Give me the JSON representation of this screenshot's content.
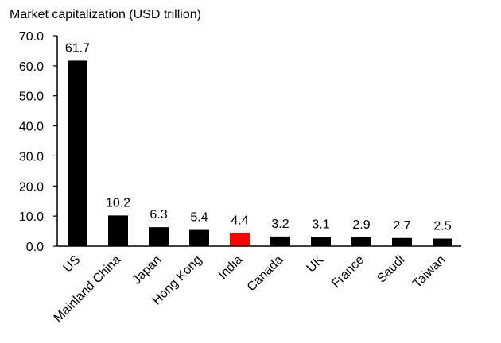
{
  "chart_data": {
    "type": "bar",
    "title": "Market capitalization (USD trillion)",
    "xlabel": "",
    "ylabel": "",
    "categories": [
      "US",
      "Mainland China",
      "Japan",
      "Hong Kong",
      "India",
      "Canada",
      "UK",
      "France",
      "Saudi",
      "Taiwan"
    ],
    "values": [
      61.7,
      10.2,
      6.3,
      5.4,
      4.4,
      3.2,
      3.1,
      2.9,
      2.7,
      2.5
    ],
    "value_labels": [
      "61.7",
      "10.2",
      "6.3",
      "5.4",
      "4.4",
      "3.2",
      "3.1",
      "2.9",
      "2.7",
      "2.5"
    ],
    "ylim": [
      0,
      70
    ],
    "yticks": [
      "0.0",
      "10.0",
      "20.0",
      "30.0",
      "40.0",
      "50.0",
      "60.0",
      "70.0"
    ],
    "grid": false,
    "legend": "none",
    "bar_color": "#000000",
    "highlight": {
      "category": "India",
      "color": "#ff0000"
    }
  }
}
